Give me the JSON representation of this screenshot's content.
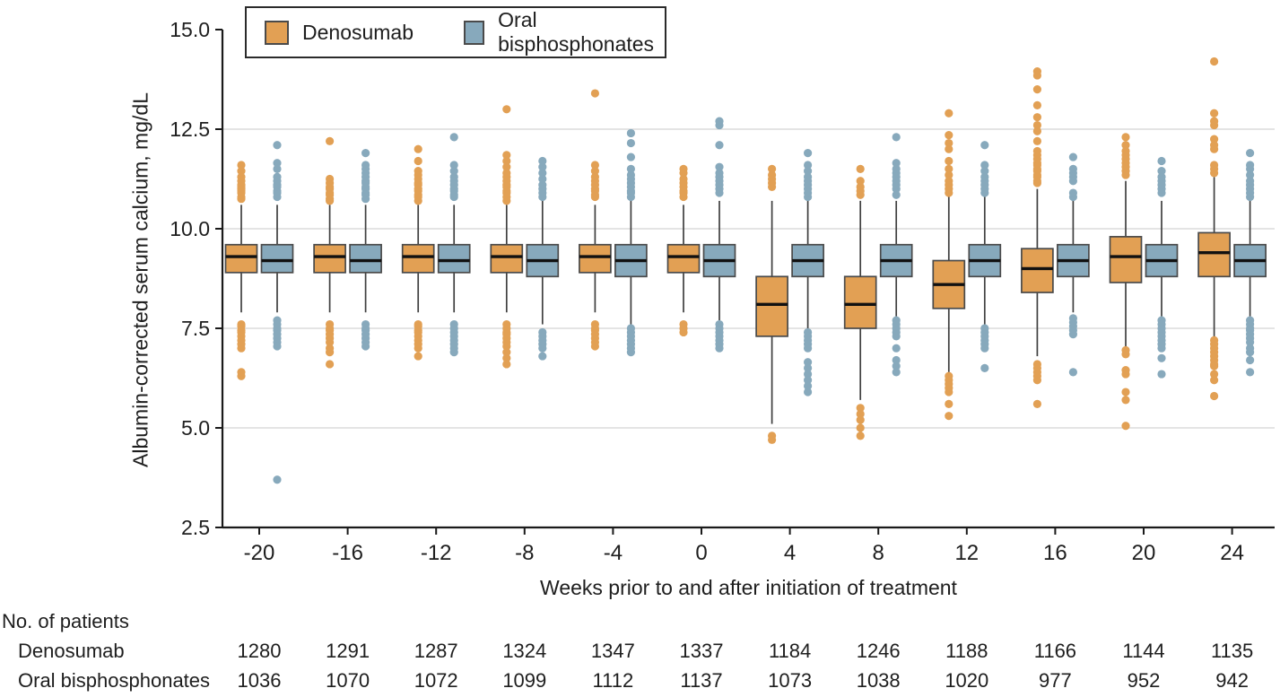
{
  "chart_data": {
    "type": "boxplot",
    "ylabel": "Albumin-corrected serum calcium, mg/dL",
    "xlabel": "Weeks prior to and after initiation of treatment",
    "ylim": [
      2.5,
      15.0
    ],
    "y_ticks": [
      2.5,
      5.0,
      7.5,
      10.0,
      12.5,
      15.0
    ],
    "y_tick_labels": [
      "2.5",
      "5.0",
      "7.5",
      "10.0",
      "12.5",
      "15.0"
    ],
    "grid_y": [
      5.0,
      7.5,
      10.0,
      12.5
    ],
    "weeks": [
      -20,
      -16,
      -12,
      -8,
      -4,
      0,
      4,
      8,
      12,
      16,
      20,
      24
    ],
    "x_tick_labels": [
      "-20",
      "-16",
      "-12",
      "-8",
      "-4",
      "0",
      "4",
      "8",
      "12",
      "16",
      "20",
      "24"
    ],
    "legend": [
      {
        "name": "Denosumab",
        "color": "#E2A054"
      },
      {
        "name": "Oral bisphosphonates",
        "color": "#87A9BC"
      }
    ],
    "legend_position": "top-left",
    "grid": true,
    "series": [
      {
        "name": "Denosumab",
        "color": "#E2A054",
        "boxes": [
          {
            "week": -20,
            "whisker_low": 7.9,
            "q1": 8.9,
            "median": 9.3,
            "q3": 9.6,
            "whisker_high": 10.6,
            "outliers_high": [
              10.75,
              10.8,
              10.9,
              10.95,
              11.0,
              11.05,
              11.1,
              11.2,
              11.3,
              11.45,
              11.6
            ],
            "outliers_low": [
              7.6,
              7.55,
              7.45,
              7.4,
              7.3,
              7.2,
              7.1,
              7.0,
              6.4,
              6.3
            ]
          },
          {
            "week": -16,
            "whisker_low": 7.9,
            "q1": 8.9,
            "median": 9.3,
            "q3": 9.6,
            "whisker_high": 10.6,
            "outliers_high": [
              10.7,
              10.75,
              10.85,
              10.9,
              11.0,
              11.05,
              11.15,
              11.25,
              12.2
            ],
            "outliers_low": [
              7.6,
              7.5,
              7.45,
              7.35,
              7.25,
              7.15,
              7.0,
              6.9,
              6.6
            ]
          },
          {
            "week": -12,
            "whisker_low": 7.9,
            "q1": 8.9,
            "median": 9.3,
            "q3": 9.6,
            "whisker_high": 10.6,
            "outliers_high": [
              10.7,
              10.8,
              10.85,
              10.95,
              11.0,
              11.1,
              11.15,
              11.25,
              11.35,
              11.45,
              11.7,
              12.0
            ],
            "outliers_low": [
              7.6,
              7.55,
              7.45,
              7.4,
              7.3,
              7.2,
              7.1,
              7.0,
              6.8
            ]
          },
          {
            "week": -8,
            "whisker_low": 7.9,
            "q1": 8.9,
            "median": 9.3,
            "q3": 9.6,
            "whisker_high": 10.6,
            "outliers_high": [
              10.7,
              10.8,
              10.9,
              10.95,
              11.05,
              11.1,
              11.2,
              11.3,
              11.4,
              11.55,
              11.7,
              11.85,
              13.0
            ],
            "outliers_low": [
              7.6,
              7.5,
              7.4,
              7.35,
              7.25,
              7.15,
              7.05,
              6.9,
              6.75,
              6.6
            ]
          },
          {
            "week": -4,
            "whisker_low": 7.9,
            "q1": 8.9,
            "median": 9.3,
            "q3": 9.6,
            "whisker_high": 10.6,
            "outliers_high": [
              10.8,
              10.85,
              10.95,
              11.0,
              11.1,
              11.2,
              11.3,
              11.45,
              11.6,
              13.4
            ],
            "outliers_low": [
              7.6,
              7.5,
              7.45,
              7.35,
              7.25,
              7.15,
              7.05
            ]
          },
          {
            "week": 0,
            "whisker_low": 7.9,
            "q1": 8.9,
            "median": 9.3,
            "q3": 9.6,
            "whisker_high": 10.6,
            "outliers_high": [
              10.8,
              10.9,
              10.95,
              11.05,
              11.15,
              11.25,
              11.4,
              11.5
            ],
            "outliers_low": [
              7.6,
              7.5,
              7.4
            ]
          },
          {
            "week": 4,
            "whisker_low": 5.1,
            "q1": 7.3,
            "median": 8.1,
            "q3": 8.8,
            "whisker_high": 10.7,
            "outliers_high": [
              11.05,
              11.15,
              11.25,
              11.35,
              11.5
            ],
            "outliers_low": [
              4.8,
              4.7
            ]
          },
          {
            "week": 8,
            "whisker_low": 5.7,
            "q1": 7.5,
            "median": 8.1,
            "q3": 8.8,
            "whisker_high": 10.7,
            "outliers_high": [
              10.85,
              10.95,
              11.05,
              11.2,
              11.5
            ],
            "outliers_low": [
              5.5,
              5.35,
              5.2,
              5.0,
              4.8
            ]
          },
          {
            "week": 12,
            "whisker_low": 6.4,
            "q1": 8.0,
            "median": 8.6,
            "q3": 9.2,
            "whisker_high": 10.8,
            "outliers_high": [
              10.9,
              11.0,
              11.1,
              11.2,
              11.35,
              11.5,
              11.7,
              12.0,
              12.15,
              12.35,
              12.9
            ],
            "outliers_low": [
              6.3,
              6.2,
              6.1,
              6.0,
              5.9,
              5.6,
              5.3
            ]
          },
          {
            "week": 16,
            "whisker_low": 6.8,
            "q1": 8.4,
            "median": 9.0,
            "q3": 9.5,
            "whisker_high": 11.0,
            "outliers_high": [
              11.15,
              11.2,
              11.3,
              11.35,
              11.45,
              11.5,
              11.6,
              11.65,
              11.75,
              11.85,
              11.95,
              12.2,
              12.45,
              12.6,
              12.8,
              13.1,
              13.5,
              13.85,
              13.95
            ],
            "outliers_low": [
              6.6,
              6.5,
              6.4,
              6.3,
              6.2,
              5.6
            ]
          },
          {
            "week": 20,
            "whisker_low": 7.0,
            "q1": 8.65,
            "median": 9.3,
            "q3": 9.8,
            "whisker_high": 11.2,
            "outliers_high": [
              11.35,
              11.45,
              11.55,
              11.65,
              11.75,
              11.85,
              11.95,
              12.1,
              12.3
            ],
            "outliers_low": [
              6.95,
              6.85,
              6.45,
              6.35,
              5.9,
              5.7,
              5.05
            ]
          },
          {
            "week": 24,
            "whisker_low": 7.25,
            "q1": 8.8,
            "median": 9.4,
            "q3": 9.9,
            "whisker_high": 11.3,
            "outliers_high": [
              11.4,
              11.5,
              11.6,
              12.0,
              12.1,
              12.25,
              12.6,
              12.7,
              12.9,
              14.2
            ],
            "outliers_low": [
              7.2,
              7.1,
              7.0,
              6.9,
              6.8,
              6.7,
              6.6,
              6.55,
              6.35,
              6.2,
              5.8
            ]
          }
        ]
      },
      {
        "name": "Oral bisphosphonates",
        "color": "#87A9BC",
        "boxes": [
          {
            "week": -20,
            "whisker_low": 7.9,
            "q1": 8.9,
            "median": 9.2,
            "q3": 9.6,
            "whisker_high": 10.6,
            "outliers_high": [
              10.8,
              10.9,
              10.95,
              11.05,
              11.1,
              11.2,
              11.3,
              11.5,
              11.65,
              12.1
            ],
            "outliers_low": [
              7.7,
              7.6,
              7.5,
              7.45,
              7.35,
              7.25,
              7.15,
              7.05,
              3.7
            ]
          },
          {
            "week": -16,
            "whisker_low": 7.9,
            "q1": 8.9,
            "median": 9.2,
            "q3": 9.6,
            "whisker_high": 10.6,
            "outliers_high": [
              10.75,
              10.85,
              10.9,
              11.0,
              11.05,
              11.15,
              11.2,
              11.3,
              11.4,
              11.5,
              11.6,
              11.9
            ],
            "outliers_low": [
              7.6,
              7.5,
              7.45,
              7.35,
              7.25,
              7.15,
              7.05
            ]
          },
          {
            "week": -12,
            "whisker_low": 7.9,
            "q1": 8.9,
            "median": 9.2,
            "q3": 9.6,
            "whisker_high": 10.6,
            "outliers_high": [
              10.8,
              10.85,
              10.95,
              11.0,
              11.1,
              11.2,
              11.3,
              11.45,
              11.6,
              12.3
            ],
            "outliers_low": [
              7.6,
              7.5,
              7.4,
              7.3,
              7.2,
              7.1,
              7.0,
              6.9
            ]
          },
          {
            "week": -8,
            "whisker_low": 7.6,
            "q1": 8.8,
            "median": 9.2,
            "q3": 9.6,
            "whisker_high": 10.7,
            "outliers_high": [
              10.8,
              10.9,
              11.0,
              11.1,
              11.25,
              11.4,
              11.55,
              11.7
            ],
            "outliers_low": [
              7.4,
              7.3,
              7.2,
              7.1,
              7.0,
              6.8
            ]
          },
          {
            "week": -4,
            "whisker_low": 7.6,
            "q1": 8.8,
            "median": 9.2,
            "q3": 9.6,
            "whisker_high": 10.7,
            "outliers_high": [
              10.8,
              10.9,
              10.95,
              11.05,
              11.15,
              11.25,
              11.35,
              11.5,
              11.8,
              12.15,
              12.4
            ],
            "outliers_low": [
              7.5,
              7.4,
              7.3,
              7.2,
              7.1,
              7.0,
              6.9
            ]
          },
          {
            "week": 0,
            "whisker_low": 7.7,
            "q1": 8.8,
            "median": 9.2,
            "q3": 9.6,
            "whisker_high": 10.7,
            "outliers_high": [
              10.9,
              11.0,
              11.1,
              11.2,
              11.3,
              11.4,
              11.55,
              12.1,
              12.6,
              12.7
            ],
            "outliers_low": [
              7.6,
              7.5,
              7.4,
              7.3,
              7.2,
              7.1,
              7.0
            ]
          },
          {
            "week": 4,
            "whisker_low": 7.5,
            "q1": 8.8,
            "median": 9.2,
            "q3": 9.6,
            "whisker_high": 10.7,
            "outliers_high": [
              10.8,
              10.9,
              11.0,
              11.1,
              11.2,
              11.3,
              11.45,
              11.6,
              11.9
            ],
            "outliers_low": [
              7.4,
              7.3,
              7.2,
              7.1,
              7.0,
              6.65,
              6.5,
              6.35,
              6.2,
              6.05,
              5.9
            ]
          },
          {
            "week": 8,
            "whisker_low": 7.8,
            "q1": 8.8,
            "median": 9.2,
            "q3": 9.6,
            "whisker_high": 10.7,
            "outliers_high": [
              10.85,
              11.0,
              11.1,
              11.2,
              11.3,
              11.4,
              11.5,
              11.65,
              12.3
            ],
            "outliers_low": [
              7.7,
              7.6,
              7.5,
              7.4,
              7.3,
              7.0,
              6.7,
              6.55,
              6.4
            ]
          },
          {
            "week": 12,
            "whisker_low": 7.6,
            "q1": 8.8,
            "median": 9.2,
            "q3": 9.6,
            "whisker_high": 10.8,
            "outliers_high": [
              10.9,
              11.0,
              11.1,
              11.2,
              11.3,
              11.45,
              11.6,
              12.1
            ],
            "outliers_low": [
              7.5,
              7.4,
              7.3,
              7.2,
              7.1,
              7.0,
              6.5
            ]
          },
          {
            "week": 16,
            "whisker_low": 7.9,
            "q1": 8.8,
            "median": 9.2,
            "q3": 9.6,
            "whisker_high": 10.7,
            "outliers_high": [
              10.8,
              10.9,
              11.2,
              11.3,
              11.4,
              11.5,
              11.8
            ],
            "outliers_low": [
              7.75,
              7.65,
              7.55,
              7.45,
              7.35,
              6.4
            ]
          },
          {
            "week": 20,
            "whisker_low": 7.8,
            "q1": 8.8,
            "median": 9.2,
            "q3": 9.6,
            "whisker_high": 10.7,
            "outliers_high": [
              10.9,
              11.0,
              11.1,
              11.2,
              11.3,
              11.45,
              11.7
            ],
            "outliers_low": [
              7.7,
              7.6,
              7.5,
              7.4,
              7.3,
              7.2,
              7.1,
              7.0,
              6.75,
              6.35
            ]
          },
          {
            "week": 24,
            "whisker_low": 7.8,
            "q1": 8.8,
            "median": 9.2,
            "q3": 9.6,
            "whisker_high": 10.7,
            "outliers_high": [
              10.8,
              10.9,
              11.0,
              11.1,
              11.2,
              11.35,
              11.5,
              11.6,
              11.9
            ],
            "outliers_low": [
              7.7,
              7.6,
              7.5,
              7.45,
              7.35,
              7.25,
              7.15,
              7.0,
              6.9,
              6.7,
              6.4
            ]
          }
        ]
      }
    ]
  },
  "patients_table": {
    "title": "No. of patients",
    "rows": [
      {
        "label": "Denosumab",
        "values": [
          1280,
          1291,
          1287,
          1324,
          1347,
          1337,
          1184,
          1246,
          1188,
          1166,
          1144,
          1135
        ]
      },
      {
        "label": "Oral bisphosphonates",
        "values": [
          1036,
          1070,
          1072,
          1099,
          1112,
          1137,
          1073,
          1038,
          1020,
          977,
          952,
          942
        ]
      }
    ]
  },
  "style_colors": {
    "box_stroke": "#4a4a4a",
    "median_line": "#111111",
    "whisker": "#3f3f3f",
    "gridline": "#dbdbdb",
    "axis": "#1a1a1a",
    "text": "#1e1e1e"
  }
}
